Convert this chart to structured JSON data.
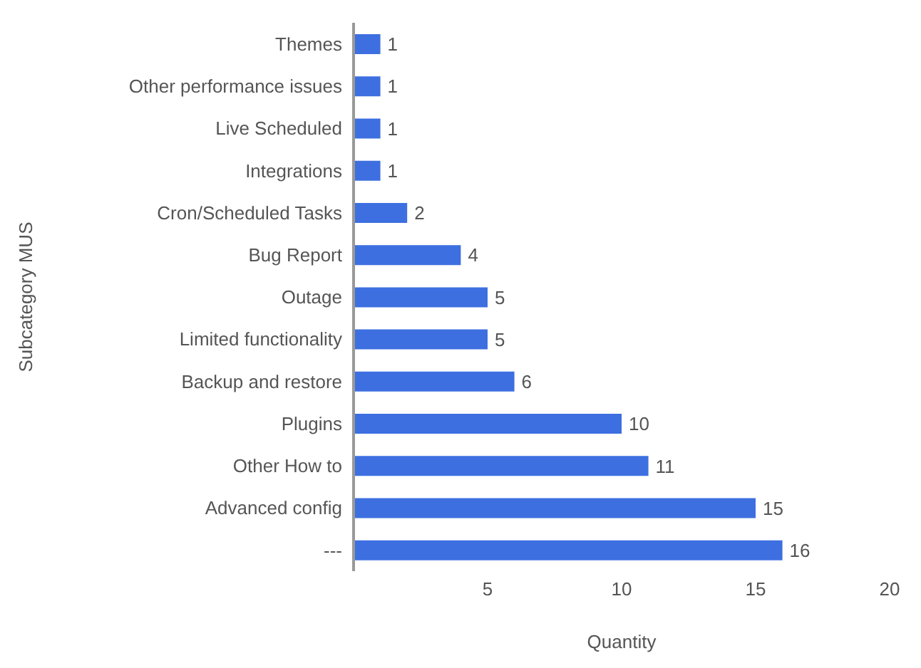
{
  "chart_data": {
    "type": "bar",
    "orientation": "horizontal",
    "xlabel": "Quantity",
    "ylabel": "Subcategory MUS",
    "categories": [
      "Themes",
      "Other performance issues",
      "Live Scheduled",
      "Integrations",
      "Cron/Scheduled Tasks",
      "Bug Report",
      "Outage",
      "Limited functionality",
      "Backup and restore",
      "Plugins",
      "Other How to",
      "Advanced config",
      "---"
    ],
    "values": [
      1,
      1,
      1,
      1,
      2,
      4,
      5,
      5,
      6,
      10,
      11,
      15,
      16
    ],
    "color": "#3d6fe0",
    "xlim": [
      0,
      20
    ],
    "xticks": [
      5,
      10,
      15,
      20
    ],
    "grid": false,
    "data_labels": true
  }
}
